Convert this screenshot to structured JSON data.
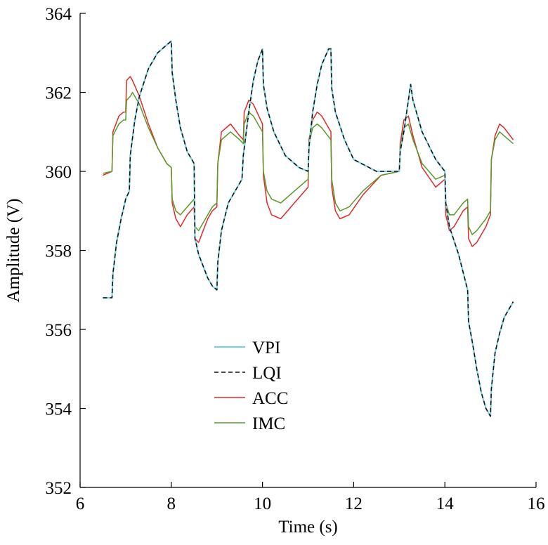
{
  "chart_data": {
    "type": "line",
    "xlabel": "Time (s)",
    "ylabel": "Amplitude (V)",
    "xlim": [
      6,
      16
    ],
    "ylim": [
      352,
      364
    ],
    "xticks": [
      6,
      8,
      10,
      12,
      14,
      16
    ],
    "yticks": [
      352,
      354,
      356,
      358,
      360,
      362,
      364
    ],
    "grid": false,
    "legend_position": "lower-left inside",
    "colors": {
      "VPI": "#7ecfdc",
      "LQI": "#111111",
      "ACC": "#e02a2a",
      "IMC": "#5a9a2a"
    },
    "series": [
      {
        "name": "VPI",
        "style": "solid",
        "x": [
          6.5,
          6.7,
          6.72,
          6.8,
          6.9,
          7.0,
          7.08,
          7.1,
          7.2,
          7.3,
          7.5,
          7.7,
          7.9,
          8.0,
          8.02,
          8.1,
          8.2,
          8.35,
          8.5,
          8.52,
          8.6,
          8.7,
          8.8,
          8.9,
          9.0,
          9.02,
          9.1,
          9.25,
          9.45,
          9.55,
          9.58,
          9.7,
          9.8,
          9.9,
          10.0,
          10.02,
          10.1,
          10.25,
          10.5,
          10.8,
          11.0,
          11.02,
          11.1,
          11.2,
          11.3,
          11.45,
          11.5,
          11.52,
          11.6,
          11.8,
          12.0,
          12.5,
          13.0,
          13.02,
          13.1,
          13.2,
          13.25,
          13.3,
          13.5,
          13.8,
          14.0,
          14.02,
          14.1,
          14.3,
          14.5,
          14.52,
          14.6,
          14.7,
          14.8,
          14.9,
          15.0,
          15.02,
          15.1,
          15.2,
          15.3,
          15.5
        ],
        "values": [
          356.8,
          356.8,
          357.4,
          358.2,
          358.8,
          359.3,
          359.5,
          360.4,
          361.3,
          361.9,
          362.6,
          363.0,
          363.2,
          363.3,
          362.5,
          361.8,
          361.1,
          360.5,
          360.2,
          358.3,
          357.9,
          357.6,
          357.3,
          357.1,
          357.0,
          357.7,
          358.5,
          359.2,
          359.6,
          359.8,
          360.4,
          361.5,
          362.3,
          362.8,
          363.1,
          362.2,
          361.6,
          361.0,
          360.4,
          360.1,
          360.0,
          360.6,
          361.5,
          362.2,
          362.7,
          363.1,
          363.1,
          362.1,
          361.5,
          360.8,
          360.3,
          360.0,
          360.0,
          360.5,
          361.0,
          361.8,
          362.2,
          361.8,
          361.0,
          360.3,
          360.0,
          359.2,
          358.6,
          357.9,
          357.0,
          356.2,
          355.7,
          355.0,
          354.4,
          354.0,
          353.8,
          354.5,
          355.4,
          355.9,
          356.3,
          356.7
        ]
      },
      {
        "name": "LQI",
        "style": "dashed",
        "x": [
          6.5,
          6.7,
          6.72,
          6.8,
          6.9,
          7.0,
          7.08,
          7.1,
          7.2,
          7.3,
          7.5,
          7.7,
          7.9,
          8.0,
          8.02,
          8.1,
          8.2,
          8.35,
          8.5,
          8.52,
          8.6,
          8.7,
          8.8,
          8.9,
          9.0,
          9.02,
          9.1,
          9.25,
          9.45,
          9.55,
          9.58,
          9.7,
          9.8,
          9.9,
          10.0,
          10.02,
          10.1,
          10.25,
          10.5,
          10.8,
          11.0,
          11.02,
          11.1,
          11.2,
          11.3,
          11.45,
          11.5,
          11.52,
          11.6,
          11.8,
          12.0,
          12.5,
          13.0,
          13.02,
          13.1,
          13.2,
          13.25,
          13.3,
          13.5,
          13.8,
          14.0,
          14.02,
          14.1,
          14.3,
          14.5,
          14.52,
          14.6,
          14.7,
          14.8,
          14.9,
          15.0,
          15.02,
          15.1,
          15.2,
          15.3,
          15.5
        ],
        "values": [
          356.8,
          356.8,
          357.4,
          358.2,
          358.8,
          359.3,
          359.5,
          360.4,
          361.3,
          361.9,
          362.6,
          363.0,
          363.2,
          363.3,
          362.5,
          361.8,
          361.1,
          360.5,
          360.2,
          358.3,
          357.9,
          357.6,
          357.3,
          357.1,
          357.0,
          357.7,
          358.5,
          359.2,
          359.6,
          359.8,
          360.4,
          361.5,
          362.3,
          362.8,
          363.1,
          362.2,
          361.6,
          361.0,
          360.4,
          360.1,
          360.0,
          360.6,
          361.5,
          362.2,
          362.7,
          363.1,
          363.1,
          362.1,
          361.5,
          360.8,
          360.3,
          360.0,
          360.0,
          360.5,
          361.0,
          361.8,
          362.2,
          361.8,
          361.0,
          360.3,
          360.0,
          359.2,
          358.6,
          357.9,
          357.0,
          356.2,
          355.7,
          355.0,
          354.4,
          354.0,
          353.8,
          354.5,
          355.4,
          355.9,
          356.3,
          356.7
        ]
      },
      {
        "name": "ACC",
        "style": "solid",
        "x": [
          6.5,
          6.7,
          6.72,
          6.85,
          6.95,
          7.0,
          7.02,
          7.1,
          7.15,
          7.3,
          7.5,
          7.7,
          7.9,
          8.0,
          8.02,
          8.1,
          8.2,
          8.35,
          8.5,
          8.52,
          8.6,
          8.7,
          8.8,
          8.9,
          9.0,
          9.02,
          9.1,
          9.3,
          9.5,
          9.58,
          9.6,
          9.7,
          9.8,
          10.0,
          10.02,
          10.1,
          10.2,
          10.4,
          10.7,
          11.0,
          11.02,
          11.1,
          11.2,
          11.3,
          11.5,
          11.52,
          11.6,
          11.7,
          11.9,
          12.2,
          12.6,
          13.0,
          13.02,
          13.1,
          13.2,
          13.3,
          13.5,
          13.8,
          14.0,
          14.02,
          14.1,
          14.2,
          14.4,
          14.5,
          14.52,
          14.6,
          14.7,
          14.9,
          15.0,
          15.02,
          15.1,
          15.2,
          15.3,
          15.5
        ],
        "values": [
          359.9,
          360.0,
          361.0,
          361.4,
          361.5,
          361.5,
          362.3,
          362.4,
          362.3,
          361.9,
          361.2,
          360.6,
          360.2,
          360.1,
          359.2,
          358.8,
          358.6,
          358.9,
          359.1,
          358.3,
          358.2,
          358.5,
          358.8,
          359.0,
          359.1,
          360.2,
          361.0,
          361.2,
          360.9,
          360.8,
          361.5,
          361.8,
          361.7,
          361.2,
          359.9,
          359.2,
          358.9,
          358.8,
          359.2,
          359.6,
          360.8,
          361.3,
          361.5,
          361.4,
          361.0,
          359.6,
          359.0,
          358.8,
          358.9,
          359.4,
          359.9,
          360.0,
          360.7,
          361.3,
          361.4,
          360.9,
          360.1,
          359.6,
          359.8,
          358.9,
          358.5,
          358.6,
          359.0,
          359.1,
          358.3,
          358.1,
          358.2,
          358.6,
          358.9,
          360.3,
          360.9,
          361.2,
          361.1,
          360.8
        ]
      },
      {
        "name": "IMC",
        "style": "solid",
        "x": [
          6.5,
          6.7,
          6.72,
          6.85,
          6.95,
          7.0,
          7.02,
          7.1,
          7.15,
          7.3,
          7.5,
          7.7,
          7.9,
          8.0,
          8.02,
          8.1,
          8.2,
          8.35,
          8.5,
          8.52,
          8.6,
          8.7,
          8.8,
          8.9,
          9.0,
          9.02,
          9.1,
          9.3,
          9.5,
          9.58,
          9.6,
          9.7,
          9.8,
          10.0,
          10.02,
          10.1,
          10.2,
          10.4,
          10.7,
          11.0,
          11.02,
          11.1,
          11.2,
          11.3,
          11.5,
          11.52,
          11.6,
          11.7,
          11.9,
          12.2,
          12.6,
          13.0,
          13.02,
          13.1,
          13.2,
          13.3,
          13.5,
          13.8,
          14.0,
          14.02,
          14.1,
          14.2,
          14.4,
          14.5,
          14.52,
          14.6,
          14.7,
          14.9,
          15.0,
          15.02,
          15.1,
          15.2,
          15.3,
          15.5
        ],
        "values": [
          359.95,
          360.0,
          360.9,
          361.2,
          361.3,
          361.3,
          361.8,
          361.9,
          362.0,
          361.7,
          361.1,
          360.6,
          360.2,
          360.1,
          359.3,
          359.0,
          358.9,
          359.1,
          359.3,
          358.6,
          358.5,
          358.7,
          358.9,
          359.1,
          359.2,
          360.2,
          360.8,
          361.0,
          360.8,
          360.7,
          361.2,
          361.5,
          361.4,
          361.0,
          360.0,
          359.5,
          359.3,
          359.2,
          359.5,
          359.8,
          360.7,
          361.1,
          361.2,
          361.1,
          360.8,
          359.8,
          359.2,
          359.0,
          359.1,
          359.5,
          359.9,
          360.0,
          360.6,
          361.1,
          361.2,
          360.8,
          360.2,
          359.8,
          359.9,
          359.2,
          358.9,
          358.9,
          359.2,
          359.3,
          358.6,
          358.4,
          358.5,
          358.8,
          359.0,
          360.3,
          360.8,
          361.0,
          360.9,
          360.7
        ]
      }
    ]
  }
}
